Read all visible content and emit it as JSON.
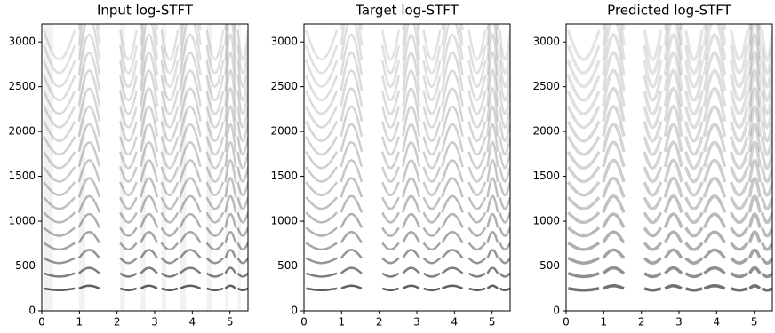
{
  "chart_data": [
    {
      "type": "heatmap",
      "title": "Input log-STFT",
      "colormap": "Greys",
      "xlim": [
        0,
        5.48
      ],
      "ylim": [
        0,
        3200
      ],
      "xticks": [
        0,
        1,
        2,
        3,
        4,
        5
      ],
      "yticks": [
        0,
        500,
        1000,
        1500,
        2000,
        2500,
        3000
      ]
    },
    {
      "type": "heatmap",
      "title": "Target log-STFT",
      "colormap": "Greys",
      "xlim": [
        0,
        5.48
      ],
      "ylim": [
        0,
        3200
      ],
      "xticks": [
        0,
        1,
        2,
        3,
        4,
        5
      ],
      "yticks": [
        0,
        500,
        1000,
        1500,
        2000,
        2500,
        3000
      ]
    },
    {
      "type": "heatmap",
      "title": "Predicted log-STFT",
      "colormap": "Greys",
      "xlim": [
        0,
        5.48
      ],
      "ylim": [
        0,
        3200
      ],
      "xticks": [
        0,
        1,
        2,
        3,
        4,
        5
      ],
      "yticks": [
        0,
        500,
        1000,
        1500,
        2000,
        2500,
        3000
      ]
    }
  ]
}
